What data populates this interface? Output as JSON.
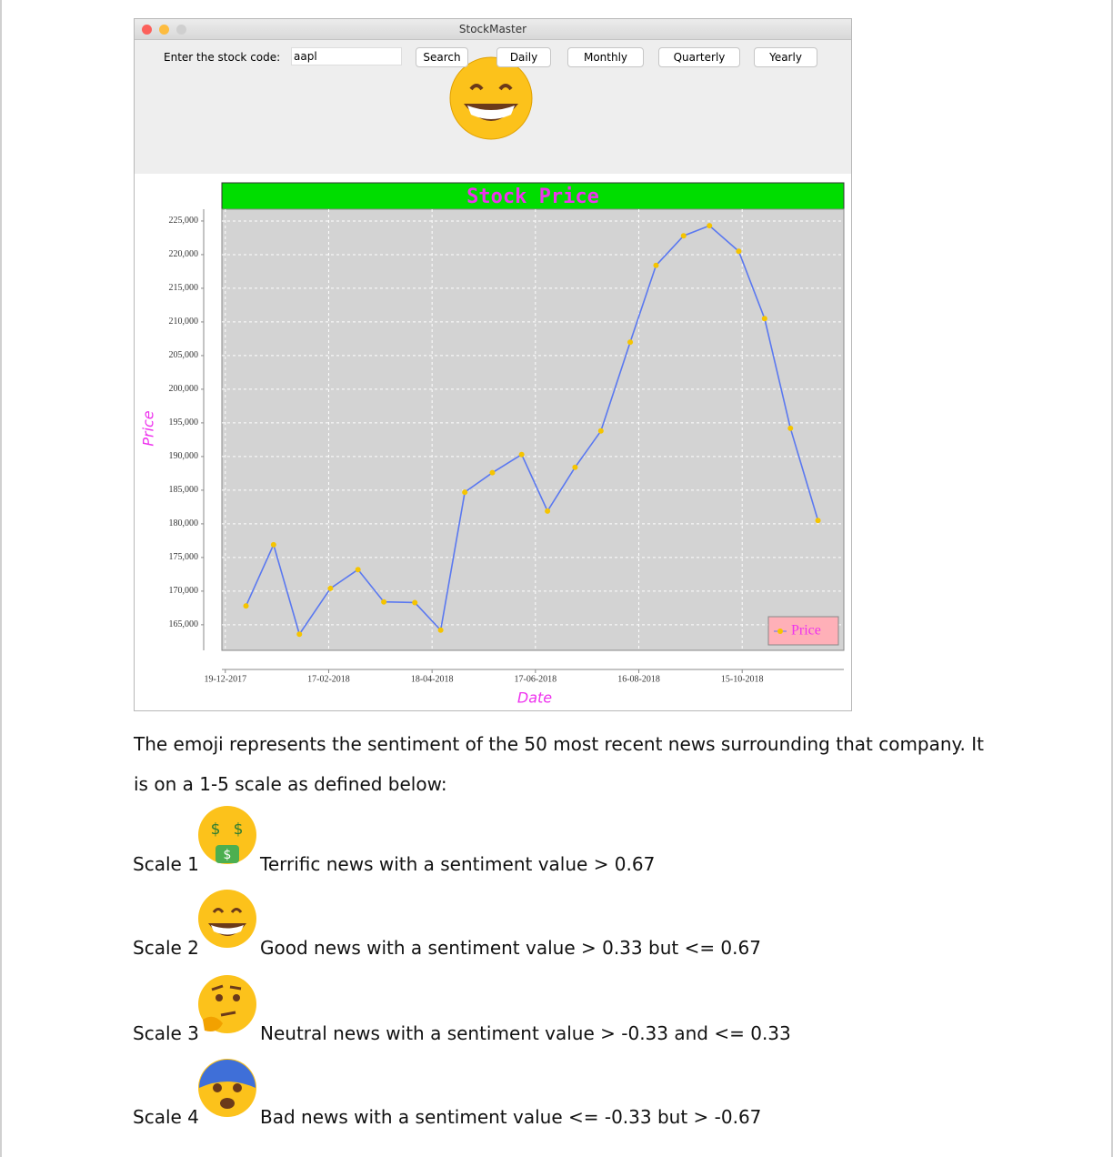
{
  "window": {
    "title": "StockMaster",
    "input_label": "Enter the stock code:",
    "input_value": "aapl",
    "buttons": [
      "Search",
      "Daily",
      "Monthly",
      "Quarterly",
      "Yearly"
    ]
  },
  "chart_data": {
    "type": "line",
    "title": "Stock Price",
    "x_label": "Date",
    "y_label": "Price",
    "x": [
      "2017-12-31",
      "2018-01-16",
      "2018-01-31",
      "2018-02-18",
      "2018-03-06",
      "2018-03-21",
      "2018-04-08",
      "2018-04-23",
      "2018-05-07",
      "2018-05-23",
      "2018-06-09",
      "2018-06-24",
      "2018-07-10",
      "2018-07-25",
      "2018-08-11",
      "2018-08-26",
      "2018-09-11",
      "2018-09-26",
      "2018-10-13",
      "2018-10-28",
      "2018-11-12",
      "2018-11-28"
    ],
    "series": [
      {
        "name": "Price",
        "color": "#5a78f0",
        "marker_color": "#f5c400",
        "values": [
          167800,
          176900,
          163600,
          170400,
          173200,
          168400,
          168300,
          164200,
          184700,
          187600,
          190300,
          181900,
          188400,
          193800,
          207000,
          218400,
          222800,
          224300,
          220500,
          210500,
          194200,
          180500
        ]
      }
    ],
    "xlim": [
      "2017-12-17",
      "2018-12-13"
    ],
    "xticks": [
      {
        "value": "2017-12-19",
        "label": "19-12-2017"
      },
      {
        "value": "2018-02-17",
        "label": "17-02-2018"
      },
      {
        "value": "2018-04-18",
        "label": "18-04-2018"
      },
      {
        "value": "2018-06-17",
        "label": "17-06-2018"
      },
      {
        "value": "2018-08-16",
        "label": "16-08-2018"
      },
      {
        "value": "2018-10-15",
        "label": "15-10-2018"
      }
    ],
    "ylim": [
      161200,
      226750
    ],
    "yticks": [
      {
        "value": 165000,
        "label": "165,000"
      },
      {
        "value": 170000,
        "label": "170,000"
      },
      {
        "value": 175000,
        "label": "175,000"
      },
      {
        "value": 180000,
        "label": "180,000"
      },
      {
        "value": 185000,
        "label": "185,000"
      },
      {
        "value": 190000,
        "label": "190,000"
      },
      {
        "value": 195000,
        "label": "195,000"
      },
      {
        "value": 200000,
        "label": "200,000"
      },
      {
        "value": 205000,
        "label": "205,000"
      },
      {
        "value": 210000,
        "label": "210,000"
      },
      {
        "value": 215000,
        "label": "215,000"
      },
      {
        "value": 220000,
        "label": "220,000"
      },
      {
        "value": 225000,
        "label": "225,000"
      }
    ],
    "grid": true,
    "legend": "bottom-right",
    "title_background": "#00dd00",
    "plot_background": "#d3d3d3"
  },
  "document": {
    "paragraph": "The emoji represents the sentiment of the 50 most recent news surrounding that company. It is on a 1-5 scale as defined below:",
    "scales": [
      {
        "label": "Scale 1",
        "text": "Terrific news with a sentiment value > 0.67"
      },
      {
        "label": "Scale 2",
        "text": "Good news with a sentiment value > 0.33 but <= 0.67"
      },
      {
        "label": "Scale 3",
        "text": "Neutral news with a sentiment value > -0.33 and <= 0.33"
      },
      {
        "label": "Scale 4",
        "text": "Bad news with a sentiment value <= -0.33 but > -0.67"
      }
    ]
  }
}
